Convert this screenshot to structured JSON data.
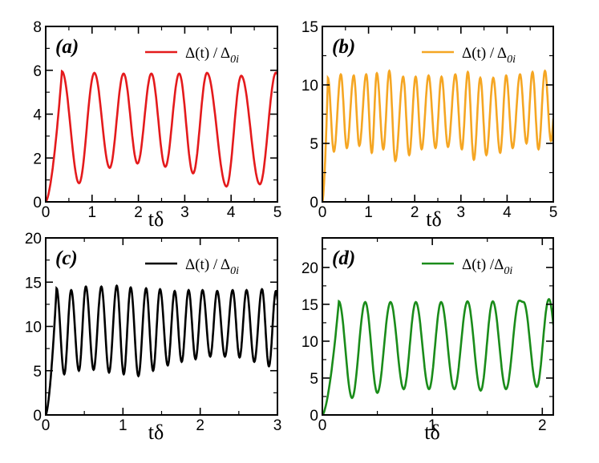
{
  "chart_data": [
    {
      "type": "line",
      "panel": "(a)",
      "xlabel": "tδ",
      "ylabel": "",
      "xlim": [
        0,
        5
      ],
      "ylim": [
        0,
        8
      ],
      "xticks": [
        "0",
        "1",
        "2",
        "3",
        "4",
        "5"
      ],
      "yticks": [
        "0",
        "2",
        "4",
        "6",
        "8"
      ],
      "legend": "top-right",
      "series": [
        {
          "name": "Δ(t) / Δ0i",
          "color": "#e41a1c",
          "start": 0.0,
          "peaks": [
            [
              0.35,
              5.95
            ],
            [
              1.05,
              5.88
            ],
            [
              1.68,
              5.85
            ],
            [
              2.28,
              5.85
            ],
            [
              2.88,
              5.85
            ],
            [
              3.48,
              5.88
            ],
            [
              4.22,
              5.75
            ],
            [
              4.97,
              5.9
            ]
          ],
          "troughs": [
            [
              0.72,
              0.85
            ],
            [
              1.38,
              1.55
            ],
            [
              1.98,
              1.75
            ],
            [
              2.58,
              1.6
            ],
            [
              3.18,
              1.3
            ],
            [
              3.9,
              0.7
            ],
            [
              4.62,
              0.8
            ]
          ]
        }
      ]
    },
    {
      "type": "line",
      "panel": "(b)",
      "xlabel": "tδ",
      "ylabel": "",
      "xlim": [
        0,
        5
      ],
      "ylim": [
        0,
        15
      ],
      "xticks": [
        "0",
        "1",
        "2",
        "3",
        "4",
        "5"
      ],
      "yticks": [
        "0",
        "5",
        "10",
        "15"
      ],
      "legend": "top-right",
      "series": [
        {
          "name": "Δ(t) / Δ0i",
          "color": "#f5a623",
          "start": 0.0,
          "peaks": [
            [
              0.12,
              10.6
            ],
            [
              0.4,
              10.9
            ],
            [
              0.68,
              10.8
            ],
            [
              0.95,
              10.9
            ],
            [
              1.18,
              11.0
            ],
            [
              1.45,
              11.2
            ],
            [
              1.75,
              10.7
            ],
            [
              2.02,
              10.7
            ],
            [
              2.3,
              10.8
            ],
            [
              2.58,
              10.7
            ],
            [
              2.88,
              10.9
            ],
            [
              3.15,
              11.1
            ],
            [
              3.42,
              10.6
            ],
            [
              3.7,
              10.6
            ],
            [
              3.98,
              10.8
            ],
            [
              4.28,
              10.9
            ],
            [
              4.55,
              11.1
            ],
            [
              4.82,
              11.2
            ]
          ],
          "troughs": [
            [
              0.25,
              4.3
            ],
            [
              0.53,
              4.6
            ],
            [
              0.8,
              4.8
            ],
            [
              1.07,
              4.2
            ],
            [
              1.32,
              4.5
            ],
            [
              1.58,
              3.5
            ],
            [
              1.88,
              4.0
            ],
            [
              2.15,
              4.5
            ],
            [
              2.45,
              4.6
            ],
            [
              2.72,
              4.7
            ],
            [
              3.02,
              4.5
            ],
            [
              3.28,
              3.6
            ],
            [
              3.55,
              4.0
            ],
            [
              3.85,
              4.2
            ],
            [
              4.12,
              4.6
            ],
            [
              4.42,
              5.0
            ],
            [
              4.68,
              4.5
            ],
            [
              4.95,
              5.2
            ]
          ]
        }
      ]
    },
    {
      "type": "line",
      "panel": "(c)",
      "xlabel": "tδ",
      "ylabel": "",
      "xlim": [
        0,
        3
      ],
      "ylim": [
        0,
        20
      ],
      "xticks": [
        "0",
        "1",
        "2",
        "3"
      ],
      "yticks": [
        "0",
        "5",
        "10",
        "15",
        "20"
      ],
      "legend": "top-right",
      "series": [
        {
          "name": "Δ(t) / Δ0i",
          "color": "#000000",
          "start": 0.0,
          "peaks": [
            [
              0.14,
              14.3
            ],
            [
              0.33,
              14.1
            ],
            [
              0.52,
              14.5
            ],
            [
              0.72,
              14.5
            ],
            [
              0.92,
              14.6
            ],
            [
              1.1,
              14.4
            ],
            [
              1.3,
              14.3
            ],
            [
              1.48,
              14.2
            ],
            [
              1.67,
              14.0
            ],
            [
              1.85,
              14.1
            ],
            [
              2.03,
              14.1
            ],
            [
              2.22,
              14.0
            ],
            [
              2.42,
              14.1
            ],
            [
              2.6,
              14.1
            ],
            [
              2.8,
              14.2
            ],
            [
              2.98,
              14.0
            ]
          ],
          "troughs": [
            [
              0.24,
              4.6
            ],
            [
              0.43,
              5.0
            ],
            [
              0.62,
              5.1
            ],
            [
              0.82,
              4.8
            ],
            [
              1.01,
              4.6
            ],
            [
              1.2,
              4.4
            ],
            [
              1.39,
              5.0
            ],
            [
              1.58,
              5.6
            ],
            [
              1.76,
              6.0
            ],
            [
              1.94,
              6.3
            ],
            [
              2.13,
              6.6
            ],
            [
              2.32,
              6.6
            ],
            [
              2.51,
              6.5
            ],
            [
              2.7,
              6.0
            ],
            [
              2.89,
              5.5
            ]
          ]
        }
      ]
    },
    {
      "type": "line",
      "panel": "(d)",
      "xlabel": "tδ",
      "ylabel": "",
      "xlim": [
        0,
        2.1
      ],
      "ylim": [
        0,
        24
      ],
      "xticks": [
        "0",
        "1",
        "2"
      ],
      "yticks": [
        "0",
        "5",
        "10",
        "15",
        "20"
      ],
      "legend": "top-right",
      "series": [
        {
          "name": "Δ(t) /Δ0i",
          "color": "#1a8c1a",
          "start": 0.0,
          "peaks": [
            [
              0.15,
              15.4
            ],
            [
              0.39,
              15.3
            ],
            [
              0.62,
              15.3
            ],
            [
              0.85,
              15.3
            ],
            [
              1.08,
              15.3
            ],
            [
              1.32,
              15.4
            ],
            [
              1.55,
              15.4
            ],
            [
              1.79,
              15.5
            ],
            [
              1.83,
              15.3
            ],
            [
              2.06,
              15.7
            ]
          ],
          "troughs": [
            [
              0.27,
              2.3
            ],
            [
              0.5,
              3.0
            ],
            [
              0.74,
              3.5
            ],
            [
              0.97,
              3.5
            ],
            [
              1.2,
              3.5
            ],
            [
              1.44,
              3.3
            ],
            [
              1.67,
              3.5
            ],
            [
              1.95,
              3.8
            ]
          ]
        }
      ]
    }
  ]
}
